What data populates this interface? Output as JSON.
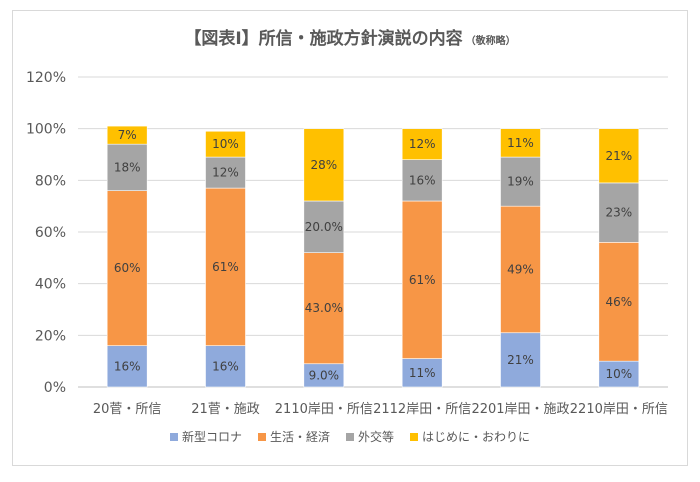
{
  "chart_data": {
    "type": "bar",
    "stacked": true,
    "title": "【図表Ⅰ】所信・施政方針演説の内容",
    "subtitle": "（敬称略）",
    "xlabel": "",
    "ylabel": "",
    "ylim": [
      0,
      1.2
    ],
    "yticks": [
      0,
      0.2,
      0.4,
      0.6,
      0.8,
      1.0,
      1.2
    ],
    "ytick_labels": [
      "0%",
      "20%",
      "40%",
      "60%",
      "80%",
      "100%",
      "120%"
    ],
    "grid": true,
    "legend_position": "bottom",
    "categories": [
      "20菅・所信",
      "21菅・施政",
      "2110岸田・所信",
      "2112岸田・所信",
      "2201岸田・施政",
      "2210岸田・所信"
    ],
    "series": [
      {
        "name": "新型コロナ",
        "color": "#8faadc",
        "values": [
          0.16,
          0.16,
          0.09,
          0.11,
          0.21,
          0.1
        ],
        "labels": [
          "16%",
          "16%",
          "9.0%",
          "11%",
          "21%",
          "10%"
        ]
      },
      {
        "name": "生活・経済",
        "color": "#f79646",
        "values": [
          0.6,
          0.61,
          0.43,
          0.61,
          0.49,
          0.46
        ],
        "labels": [
          "60%",
          "61%",
          "43.0%",
          "61%",
          "49%",
          "46%"
        ]
      },
      {
        "name": "外交等",
        "color": "#a5a5a5",
        "values": [
          0.18,
          0.12,
          0.2,
          0.16,
          0.19,
          0.23
        ],
        "labels": [
          "18%",
          "12%",
          "20.0%",
          "16%",
          "19%",
          "23%"
        ]
      },
      {
        "name": "はじめに・おわりに",
        "color": "#ffc000",
        "values": [
          0.07,
          0.1,
          0.28,
          0.12,
          0.11,
          0.21
        ],
        "labels": [
          "7%",
          "10%",
          "28%",
          "12%",
          "11%",
          "21%"
        ]
      }
    ]
  }
}
